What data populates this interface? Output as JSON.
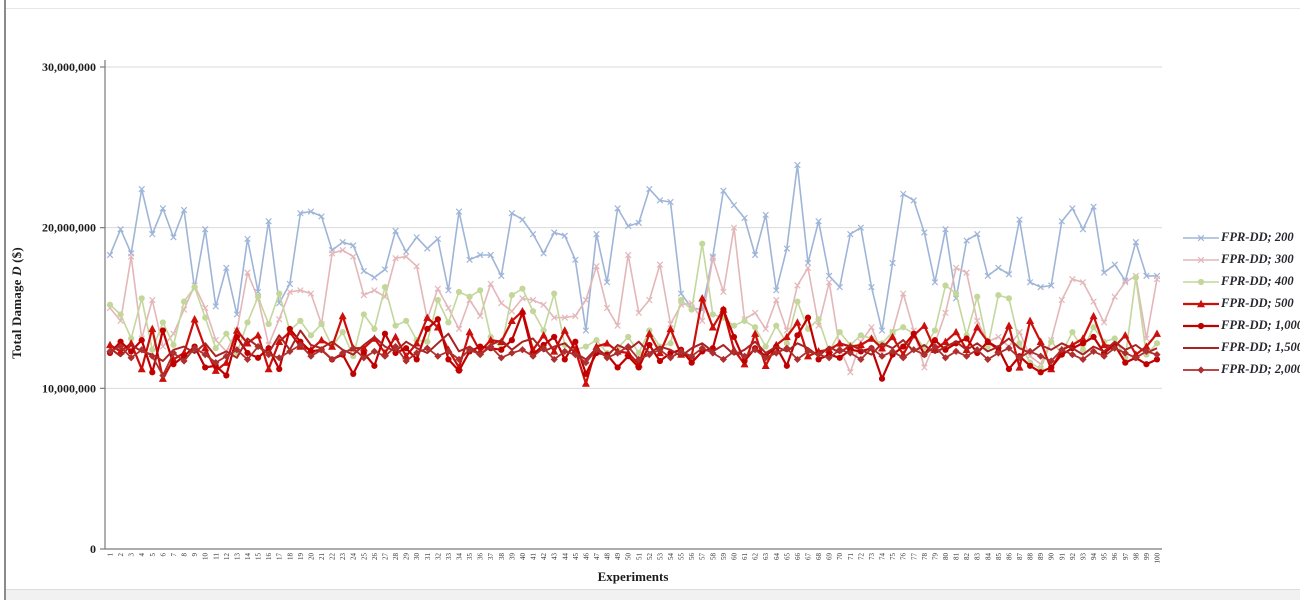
{
  "chart": {
    "ylabel_parts": [
      "Total Damage ",
      "D",
      " ($)"
    ],
    "xlabel": "Experiments",
    "y_ticks": [
      "30,000,000",
      "20,000,000",
      "10,000,000",
      "0"
    ]
  },
  "chart_data": {
    "type": "line",
    "title": "",
    "xlabel": "Experiments",
    "ylabel": "Total Damage D ($)",
    "x_start": 1,
    "x_end": 100,
    "x_step": 1,
    "values_unit": "millions of USD",
    "ylim": [
      0,
      30000000
    ],
    "y_gridlines": [
      10000000,
      20000000,
      30000000
    ],
    "grid": "horizontal-only",
    "legend_position": "right",
    "axis_color": "#7a7a7a",
    "grid_color": "#d9d9d9",
    "tick_label_color": "#1c1c1c",
    "series": [
      {
        "name": "FPR-DD; 200",
        "color": "#9fb5d8",
        "marker": "x",
        "line_width": 1.6,
        "values": [
          18.3,
          19.9,
          18.4,
          22.4,
          19.6,
          21.2,
          19.4,
          21.1,
          16.2,
          19.9,
          15.1,
          17.5,
          14.6,
          19.3,
          16.0,
          20.4,
          15.3,
          16.5,
          20.9,
          21.0,
          20.7,
          18.6,
          19.1,
          18.9,
          17.3,
          16.9,
          17.4,
          19.8,
          18.5,
          19.4,
          18.7,
          19.3,
          16.1,
          21.0,
          18.0,
          18.3,
          18.3,
          17.0,
          20.9,
          20.5,
          19.6,
          18.4,
          19.7,
          19.5,
          18.0,
          13.6,
          19.6,
          16.6,
          21.2,
          20.1,
          20.3,
          22.4,
          21.7,
          21.6,
          15.9,
          15.0,
          14.9,
          18.2,
          22.3,
          21.4,
          20.6,
          18.3,
          20.8,
          16.1,
          18.7,
          23.9,
          17.8,
          20.4,
          17.0,
          16.3,
          19.6,
          20.0,
          16.3,
          13.6,
          17.8,
          22.1,
          21.7,
          19.7,
          16.6,
          19.9,
          15.6,
          19.2,
          19.6,
          17.0,
          17.5,
          17.1,
          20.5,
          16.6,
          16.3,
          16.4,
          20.4,
          21.2,
          19.9,
          21.3,
          17.2,
          17.7,
          16.7,
          19.1,
          17.0,
          17.0
        ]
      },
      {
        "name": "FPR-DD; 300",
        "color": "#e3b7ba",
        "marker": "x",
        "line_width": 1.6,
        "values": [
          15.0,
          14.2,
          18.2,
          13.1,
          15.5,
          12.6,
          13.4,
          14.9,
          16.4,
          15.0,
          13.0,
          12.3,
          13.6,
          17.2,
          15.6,
          12.7,
          14.3,
          16.0,
          16.1,
          15.9,
          14.0,
          18.4,
          18.6,
          18.2,
          15.8,
          16.1,
          15.7,
          18.1,
          18.2,
          17.6,
          14.3,
          16.2,
          15.0,
          13.7,
          15.5,
          14.5,
          16.5,
          15.3,
          14.8,
          15.6,
          15.5,
          15.2,
          14.4,
          14.4,
          14.5,
          15.5,
          17.6,
          15.0,
          13.9,
          18.3,
          14.7,
          15.5,
          17.7,
          14.0,
          15.2,
          15.3,
          14.2,
          18.1,
          16.0,
          20.0,
          14.3,
          14.7,
          13.7,
          15.5,
          13.6,
          16.4,
          17.5,
          13.9,
          16.6,
          12.5,
          11.0,
          12.9,
          13.8,
          12.2,
          13.5,
          15.9,
          13.6,
          11.3,
          12.8,
          14.7,
          17.5,
          17.2,
          14.2,
          12.9,
          13.2,
          12.6,
          13.5,
          12.0,
          11.5,
          13.0,
          15.5,
          16.8,
          16.6,
          15.4,
          14.1,
          15.7,
          16.6,
          17.0,
          13.1,
          16.8
        ]
      },
      {
        "name": "FPR-DD; 400",
        "color": "#c4d79b",
        "marker": "circle",
        "line_width": 1.6,
        "values": [
          15.2,
          14.6,
          13.1,
          15.6,
          12.4,
          14.1,
          12.7,
          15.4,
          16.3,
          14.4,
          12.5,
          13.4,
          12.2,
          14.1,
          15.7,
          14.0,
          15.9,
          13.6,
          14.2,
          13.3,
          14.0,
          12.6,
          13.5,
          12.0,
          14.6,
          13.7,
          16.3,
          13.9,
          14.2,
          13.0,
          12.9,
          15.5,
          14.1,
          16.0,
          15.7,
          16.1,
          13.2,
          12.5,
          15.8,
          16.2,
          14.8,
          13.6,
          15.9,
          12.7,
          12.4,
          12.6,
          13.0,
          12.2,
          12.5,
          13.2,
          12.2,
          13.6,
          12.6,
          12.8,
          15.5,
          14.9,
          19.0,
          14.6,
          14.4,
          13.9,
          14.2,
          13.8,
          12.6,
          13.9,
          12.8,
          15.4,
          13.7,
          14.3,
          12.3,
          13.5,
          12.7,
          13.3,
          13.1,
          12.8,
          13.5,
          13.8,
          13.4,
          12.5,
          13.6,
          16.4,
          15.9,
          13.3,
          15.7,
          12.6,
          15.8,
          15.6,
          12.8,
          11.6,
          11.2,
          12.9,
          12.2,
          13.5,
          12.4,
          13.8,
          12.9,
          13.1,
          11.9,
          16.9,
          12.1,
          12.8
        ]
      },
      {
        "name": "FPR-DD; 500",
        "color": "#cc0f0a",
        "marker": "triangle",
        "line_width": 2.2,
        "values": [
          12.7,
          12.3,
          12.8,
          11.2,
          13.7,
          10.6,
          11.8,
          12.2,
          14.3,
          12.5,
          11.1,
          11.6,
          13.6,
          12.8,
          13.3,
          11.2,
          12.9,
          13.5,
          12.6,
          12.4,
          13.0,
          12.6,
          14.5,
          12.5,
          12.5,
          13.1,
          12.2,
          13.2,
          12.0,
          12.8,
          14.4,
          13.8,
          12.4,
          11.3,
          13.5,
          12.3,
          13.0,
          12.9,
          14.2,
          14.8,
          12.4,
          13.3,
          12.3,
          13.6,
          12.4,
          10.3,
          12.6,
          12.8,
          12.3,
          12.2,
          11.5,
          13.4,
          12.2,
          13.7,
          12.1,
          12.0,
          15.6,
          13.8,
          14.9,
          12.4,
          11.5,
          13.4,
          11.4,
          12.7,
          13.2,
          14.1,
          12.0,
          12.3,
          12.4,
          12.8,
          12.6,
          12.7,
          13.1,
          12.5,
          13.2,
          12.1,
          13.3,
          13.9,
          12.4,
          12.9,
          13.5,
          12.4,
          13.8,
          12.9,
          12.4,
          13.9,
          11.3,
          14.2,
          12.9,
          11.2,
          12.4,
          12.7,
          13.1,
          14.5,
          12.7,
          12.6,
          13.3,
          12.1,
          12.6,
          13.4
        ]
      },
      {
        "name": "FPR-DD; 1,000",
        "color": "#c00000",
        "marker": "circle",
        "line_width": 2.2,
        "values": [
          12.2,
          12.9,
          12.3,
          13.0,
          11.0,
          13.6,
          11.5,
          12.0,
          12.6,
          11.3,
          11.4,
          10.8,
          13.2,
          12.2,
          11.9,
          12.5,
          11.2,
          13.7,
          12.9,
          12.3,
          12.4,
          11.8,
          12.1,
          10.9,
          12.2,
          11.4,
          13.4,
          12.2,
          12.5,
          11.8,
          13.7,
          14.3,
          11.8,
          11.1,
          12.3,
          12.6,
          12.5,
          12.4,
          13.0,
          14.7,
          12.1,
          12.7,
          13.2,
          11.8,
          12.9,
          10.9,
          12.2,
          12.1,
          11.3,
          12.0,
          11.3,
          12.7,
          11.7,
          12.2,
          12.4,
          11.6,
          12.3,
          12.5,
          14.9,
          13.2,
          11.7,
          12.5,
          12.0,
          12.6,
          11.4,
          13.3,
          14.4,
          11.8,
          12.1,
          11.9,
          12.4,
          12.3,
          12.5,
          10.6,
          12.1,
          12.6,
          13.4,
          12.1,
          13.0,
          12.4,
          12.8,
          13.1,
          12.2,
          12.9,
          12.5,
          11.2,
          12.0,
          11.4,
          11.0,
          11.3,
          12.1,
          12.5,
          12.8,
          13.2,
          12.2,
          12.7,
          11.6,
          11.9,
          11.5,
          11.8
        ]
      },
      {
        "name": "FPR-DD; 1,500",
        "color": "#a82423",
        "marker": "none",
        "line_width": 2.0,
        "values": [
          12.5,
          12.0,
          12.7,
          12.3,
          12.1,
          11.7,
          12.4,
          12.6,
          12.2,
          12.8,
          12.0,
          12.3,
          11.9,
          13.1,
          12.6,
          12.2,
          13.3,
          12.4,
          13.6,
          12.7,
          12.5,
          12.9,
          12.4,
          12.1,
          12.7,
          13.2,
          12.6,
          12.3,
          12.9,
          12.5,
          12.2,
          12.8,
          13.4,
          12.3,
          12.6,
          12.1,
          12.7,
          13.0,
          12.4,
          12.9,
          13.1,
          12.3,
          12.6,
          12.8,
          12.2,
          11.8,
          12.5,
          12.0,
          12.7,
          12.4,
          12.9,
          12.2,
          12.6,
          12.4,
          12.0,
          12.5,
          12.8,
          12.3,
          12.7,
          12.1,
          12.4,
          12.9,
          12.2,
          12.6,
          12.3,
          12.8,
          12.5,
          12.0,
          12.6,
          12.2,
          12.7,
          12.4,
          12.1,
          12.8,
          12.5,
          13.0,
          12.3,
          12.7,
          12.2,
          12.6,
          12.9,
          12.4,
          12.8,
          12.3,
          12.6,
          13.1,
          12.5,
          12.2,
          12.7,
          12.4,
          12.8,
          12.5,
          12.1,
          12.6,
          12.3,
          12.9,
          12.4,
          12.7,
          12.2,
          12.5
        ]
      },
      {
        "name": "FPR-DD; 2,000",
        "color": "#ad2f2e",
        "marker": "diamond",
        "line_width": 1.8,
        "values": [
          12.3,
          12.6,
          11.9,
          12.4,
          12.0,
          10.8,
          12.2,
          11.7,
          12.5,
          12.1,
          11.6,
          12.0,
          12.4,
          11.8,
          12.6,
          12.1,
          11.9,
          12.3,
          12.7,
          12.0,
          12.4,
          11.8,
          12.2,
          12.5,
          11.9,
          12.3,
          12.0,
          12.6,
          11.7,
          12.2,
          12.5,
          12.0,
          12.3,
          11.8,
          12.4,
          12.1,
          12.6,
          11.9,
          12.2,
          12.4,
          12.0,
          12.5,
          11.8,
          12.3,
          12.1,
          11.6,
          12.4,
          11.9,
          12.2,
          12.6,
          11.8,
          12.1,
          12.4,
          11.9,
          12.3,
          12.0,
          12.5,
          12.2,
          11.8,
          12.3,
          12.0,
          12.4,
          11.9,
          12.2,
          12.5,
          11.8,
          12.3,
          12.1,
          11.9,
          12.4,
          12.2,
          11.8,
          12.5,
          12.0,
          12.3,
          11.9,
          12.4,
          12.1,
          12.6,
          11.9,
          12.3,
          12.0,
          12.4,
          11.8,
          12.2,
          12.5,
          11.9,
          12.3,
          12.0,
          11.7,
          12.4,
          12.1,
          11.8,
          12.3,
          12.0,
          12.5,
          12.2,
          11.9,
          12.3,
          12.1
        ]
      }
    ]
  }
}
